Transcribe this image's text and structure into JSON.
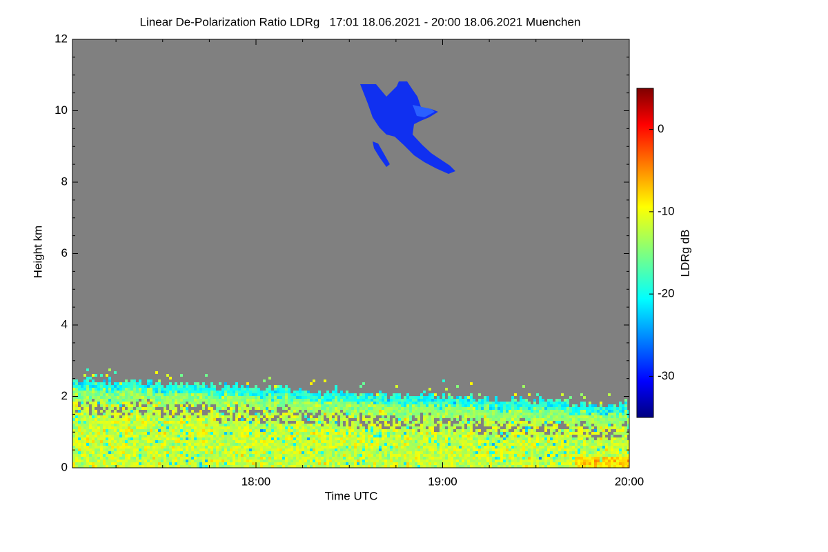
{
  "chart_data": {
    "type": "heatmap",
    "title": "Linear De-Polarization Ratio LDRg   17:01 18.06.2021 - 20:00 18.06.2021 Muenchen",
    "x_label": "Time UTC",
    "y_label": "Height km",
    "colorbar_label": "LDRg dB",
    "xlim": [
      "17:01",
      "20:00"
    ],
    "xticks": [
      "18:00",
      "19:00",
      "20:00"
    ],
    "ylim": [
      0,
      12
    ],
    "yticks": [
      0,
      2,
      4,
      6,
      8,
      10,
      12
    ],
    "zlim": [
      -35,
      5
    ],
    "zticks": [
      0,
      -10,
      -20,
      -30
    ],
    "colormap": "jet",
    "background_color": "#808080"
  }
}
